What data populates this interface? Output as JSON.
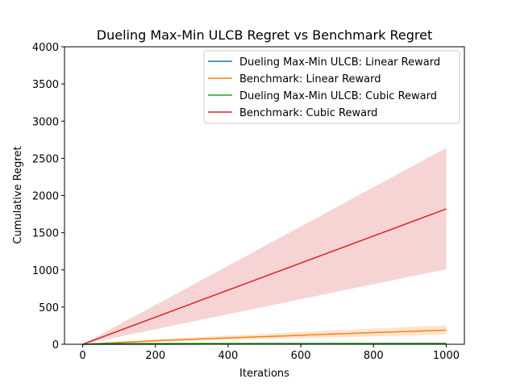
{
  "chart_data": {
    "type": "line",
    "title": "Dueling Max-Min ULCB Regret vs Benchmark Regret",
    "xlabel": "Iterations",
    "ylabel": "Cumulative Regret",
    "xlim": [
      -50,
      1050
    ],
    "ylim": [
      0,
      4000
    ],
    "xticks": [
      0,
      200,
      400,
      600,
      800,
      1000
    ],
    "yticks": [
      0,
      500,
      1000,
      1500,
      2000,
      2500,
      3000,
      3500,
      4000
    ],
    "grid": false,
    "legend_position": "top-right",
    "series": [
      {
        "name": "Dueling Max-Min ULCB: Linear Reward",
        "color": "#1f77b4",
        "x": [
          0,
          1000
        ],
        "y": [
          0,
          8
        ],
        "lower": [
          0,
          3
        ],
        "upper": [
          0,
          14
        ]
      },
      {
        "name": "Benchmark: Linear Reward",
        "color": "#ff7f0e",
        "x": [
          0,
          100,
          200,
          300,
          400,
          500,
          600,
          700,
          800,
          900,
          1000
        ],
        "y": [
          0,
          25,
          48,
          67,
          85,
          103,
          121,
          139,
          157,
          174,
          190
        ],
        "lower": [
          0,
          15,
          32,
          45,
          58,
          70,
          82,
          94,
          106,
          117,
          128
        ],
        "upper": [
          0,
          36,
          66,
          92,
          116,
          140,
          164,
          188,
          212,
          235,
          255
        ]
      },
      {
        "name": "Dueling Max-Min ULCB: Cubic Reward",
        "color": "#2ca02c",
        "x": [
          0,
          50,
          1000
        ],
        "y": [
          0,
          10,
          12
        ],
        "lower": [
          0,
          5,
          6
        ],
        "upper": [
          0,
          16,
          20
        ]
      },
      {
        "name": "Benchmark: Cubic Reward",
        "color": "#d62728",
        "x": [
          0,
          1000
        ],
        "y": [
          0,
          1820
        ],
        "lower": [
          0,
          1010
        ],
        "upper": [
          0,
          2640
        ]
      }
    ]
  }
}
